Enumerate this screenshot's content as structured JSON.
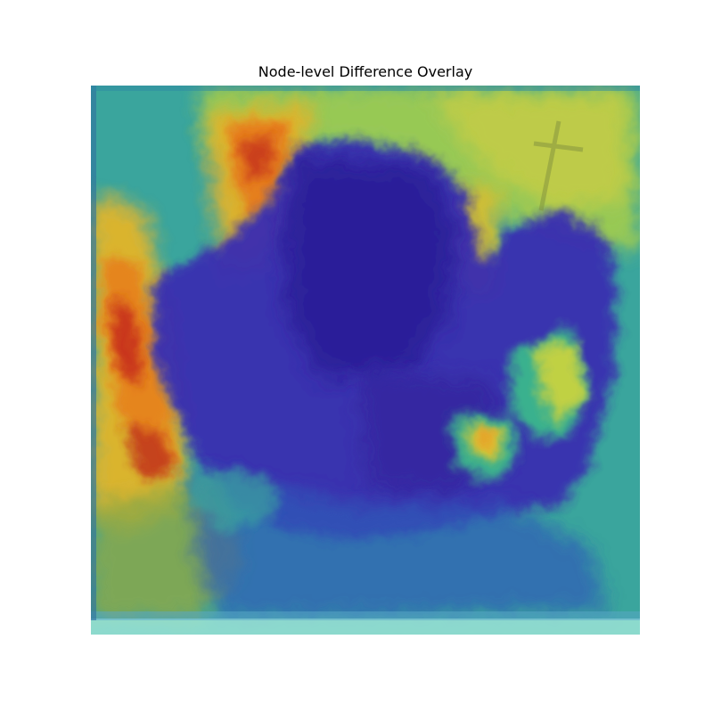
{
  "figure": {
    "title": "Node-level Difference Overlay"
  },
  "overlay": {
    "description_icon": "heatmap-overlay-image",
    "colormap": [
      "#30128a",
      "#3b4fc4",
      "#2f9aa6",
      "#3cc08a",
      "#9dd34a",
      "#e6c42b",
      "#e67b1f",
      "#c9291f"
    ],
    "base_color": "#3c2b9e",
    "frame_color": "#9be3d6"
  }
}
